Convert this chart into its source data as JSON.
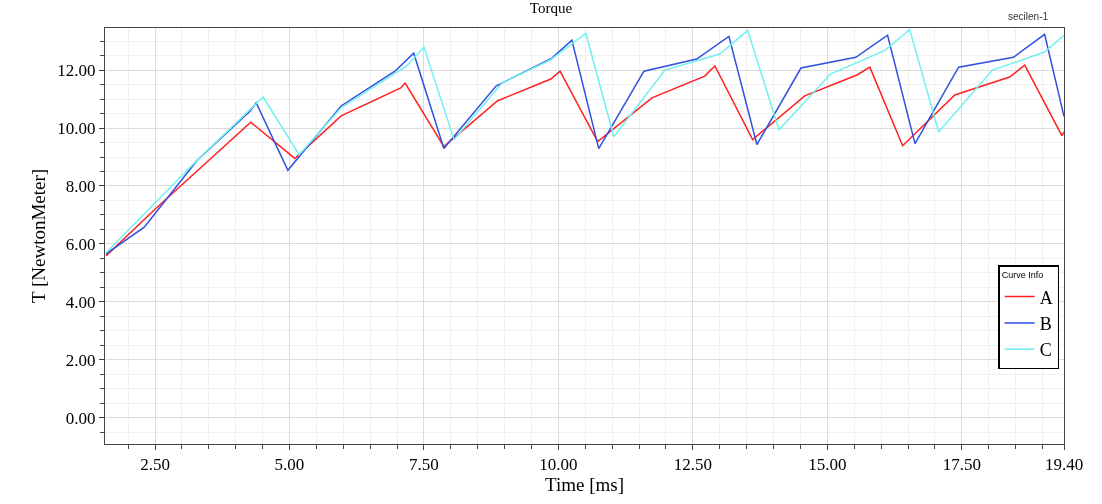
{
  "chart_data": {
    "type": "line",
    "title": "Torque",
    "xlabel": "Time [ms]",
    "ylabel": "T [NewtonMeter]",
    "legend_title": "Curve Info",
    "annotations": [
      "secilen-1"
    ],
    "xlim": [
      1.57,
      19.4
    ],
    "ylim": [
      -0.9,
      13.45
    ],
    "xticks": [
      {
        "value": 2.5,
        "label": "2.50"
      },
      {
        "value": 5,
        "label": "5.00"
      },
      {
        "value": 7.5,
        "label": "7.50"
      },
      {
        "value": 10,
        "label": "10.00"
      },
      {
        "value": 12.5,
        "label": "12.50"
      },
      {
        "value": 15,
        "label": "15.00"
      },
      {
        "value": 17.5,
        "label": "17.50"
      },
      {
        "value": 19.4,
        "label": "19.40"
      }
    ],
    "yticks": [
      {
        "value": 0,
        "label": "0.00"
      },
      {
        "value": 2,
        "label": "2.00"
      },
      {
        "value": 4,
        "label": "4.00"
      },
      {
        "value": 6,
        "label": "6.00"
      },
      {
        "value": 8,
        "label": "8.00"
      },
      {
        "value": 10,
        "label": "10.00"
      },
      {
        "value": 12,
        "label": "12.00"
      }
    ],
    "grid": true,
    "legend": "bottom right",
    "marker": "none",
    "line_style": "solid",
    "series": [
      {
        "name": "A",
        "color": "#ff2020",
        "x": [
          1.59,
          2.5,
          4.28,
          5.1,
          5.96,
          7.07,
          7.15,
          7.87,
          8.87,
          9.86,
          10.03,
          10.73,
          11.74,
          12.72,
          12.91,
          13.61,
          14.58,
          15.55,
          15.79,
          16.4,
          17.37,
          18.39,
          18.67,
          19.36,
          19.4
        ],
        "values": [
          5.59,
          7.2,
          10.2,
          8.95,
          10.42,
          11.38,
          11.55,
          9.36,
          10.94,
          11.69,
          11.96,
          9.53,
          11.04,
          11.79,
          12.14,
          9.6,
          11.11,
          11.83,
          12.1,
          9.39,
          11.14,
          11.76,
          12.17,
          9.74,
          9.87
        ]
      },
      {
        "name": "B",
        "color": "#3050e0",
        "x": [
          1.59,
          2.3,
          3.28,
          4.27,
          4.38,
          4.97,
          5.96,
          6.96,
          7.31,
          7.87,
          8.84,
          9.88,
          10.25,
          10.75,
          11.59,
          12.57,
          13.17,
          13.69,
          14.51,
          15.53,
          16.12,
          16.63,
          17.44,
          18.46,
          19.04,
          19.4
        ],
        "values": [
          5.66,
          6.58,
          8.88,
          10.59,
          10.87,
          8.54,
          10.76,
          11.96,
          12.58,
          9.29,
          11.45,
          12.41,
          13.03,
          9.29,
          11.96,
          12.38,
          13.16,
          9.43,
          12.07,
          12.44,
          13.2,
          9.46,
          12.1,
          12.44,
          13.23,
          10.4
        ]
      },
      {
        "name": "C",
        "color": "#70f0f0",
        "x": [
          1.59,
          3.24,
          4.51,
          5.18,
          5.96,
          7.18,
          7.5,
          8.06,
          8.95,
          9.86,
          10.51,
          11.03,
          11.98,
          13.0,
          13.52,
          14.1,
          15.06,
          16.07,
          16.53,
          17.07,
          18.07,
          19.04,
          19.4
        ],
        "values": [
          5.7,
          8.81,
          11.07,
          9.08,
          10.7,
          12.14,
          12.79,
          9.6,
          11.55,
          12.36,
          13.27,
          9.7,
          12.0,
          12.55,
          13.37,
          9.94,
          11.86,
          12.68,
          13.4,
          9.87,
          12.0,
          12.62,
          13.2
        ]
      }
    ]
  }
}
